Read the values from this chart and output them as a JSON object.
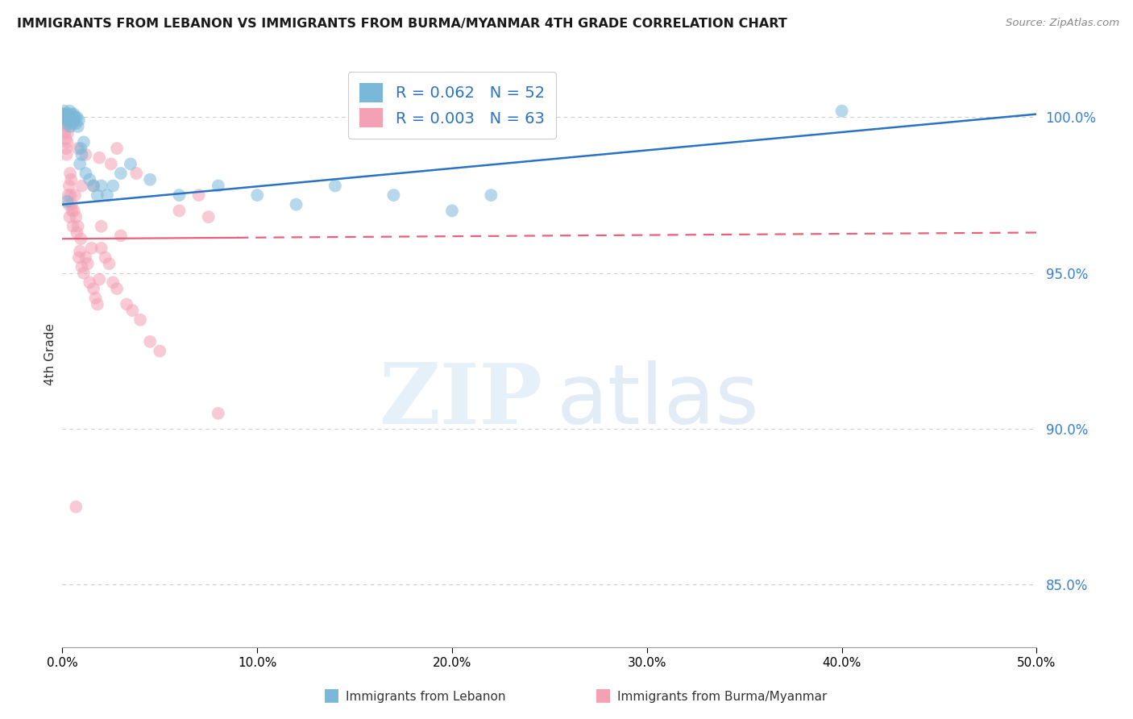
{
  "title": "IMMIGRANTS FROM LEBANON VS IMMIGRANTS FROM BURMA/MYANMAR 4TH GRADE CORRELATION CHART",
  "source": "Source: ZipAtlas.com",
  "ylabel": "4th Grade",
  "legend_label_blue": "Immigrants from Lebanon",
  "legend_label_pink": "Immigrants from Burma/Myanmar",
  "R_blue": 0.062,
  "N_blue": 52,
  "R_pink": 0.003,
  "N_pink": 63,
  "xlim": [
    0.0,
    50.0
  ],
  "ylim": [
    83.0,
    101.8
  ],
  "yticks": [
    85.0,
    90.0,
    95.0,
    100.0
  ],
  "xticks": [
    0.0,
    10.0,
    20.0,
    30.0,
    40.0,
    50.0
  ],
  "blue_color": "#7ab8d9",
  "pink_color": "#f4a0b5",
  "blue_line_color": "#2b72c2",
  "pink_line_color": "#e8607a",
  "blue_trend_y0": 97.2,
  "blue_trend_y1": 100.1,
  "pink_trend_y0": 96.1,
  "pink_trend_y1": 96.3,
  "pink_solid_end_x": 9.0,
  "blue_scatter_x": [
    0.05,
    0.08,
    0.1,
    0.12,
    0.15,
    0.18,
    0.2,
    0.22,
    0.25,
    0.28,
    0.3,
    0.33,
    0.35,
    0.38,
    0.4,
    0.42,
    0.45,
    0.48,
    0.5,
    0.52,
    0.55,
    0.58,
    0.6,
    0.65,
    0.7,
    0.75,
    0.8,
    0.85,
    0.9,
    0.95,
    1.0,
    1.1,
    1.2,
    1.4,
    1.6,
    1.8,
    2.0,
    2.3,
    2.6,
    3.0,
    3.5,
    4.5,
    6.0,
    8.0,
    10.0,
    12.0,
    14.0,
    17.0,
    20.0,
    22.0,
    40.0,
    0.25
  ],
  "blue_scatter_y": [
    100.1,
    100.0,
    100.2,
    100.0,
    100.1,
    99.9,
    100.0,
    100.1,
    99.8,
    100.0,
    100.1,
    99.9,
    100.0,
    100.2,
    99.7,
    100.0,
    99.9,
    100.1,
    100.0,
    99.8,
    100.0,
    100.1,
    99.9,
    100.0,
    99.8,
    100.0,
    99.7,
    99.9,
    98.5,
    99.0,
    98.8,
    99.2,
    98.2,
    98.0,
    97.8,
    97.5,
    97.8,
    97.5,
    97.8,
    98.2,
    98.5,
    98.0,
    97.5,
    97.8,
    97.5,
    97.2,
    97.8,
    97.5,
    97.0,
    97.5,
    100.2,
    97.3
  ],
  "pink_scatter_x": [
    0.05,
    0.08,
    0.1,
    0.12,
    0.15,
    0.18,
    0.2,
    0.22,
    0.25,
    0.28,
    0.3,
    0.33,
    0.35,
    0.38,
    0.4,
    0.42,
    0.45,
    0.48,
    0.5,
    0.55,
    0.6,
    0.65,
    0.7,
    0.75,
    0.8,
    0.85,
    0.9,
    0.95,
    1.0,
    1.1,
    1.2,
    1.3,
    1.4,
    1.5,
    1.6,
    1.7,
    1.8,
    1.9,
    2.0,
    2.2,
    2.4,
    2.6,
    2.8,
    3.0,
    3.3,
    3.6,
    4.0,
    4.5,
    5.0,
    6.0,
    7.0,
    7.5,
    8.0,
    1.2,
    2.5,
    0.8,
    1.9,
    1.0,
    2.8,
    3.8,
    1.6,
    2.0,
    0.7
  ],
  "pink_scatter_y": [
    100.1,
    100.0,
    99.8,
    99.5,
    99.7,
    99.3,
    99.0,
    98.8,
    99.2,
    99.5,
    97.5,
    97.2,
    97.8,
    96.8,
    98.2,
    97.5,
    98.0,
    97.2,
    97.0,
    96.5,
    97.0,
    97.5,
    96.8,
    96.3,
    96.5,
    95.5,
    95.7,
    96.1,
    95.2,
    95.0,
    95.5,
    95.3,
    94.7,
    95.8,
    94.5,
    94.2,
    94.0,
    94.8,
    96.5,
    95.5,
    95.3,
    94.7,
    94.5,
    96.2,
    94.0,
    93.8,
    93.5,
    92.8,
    92.5,
    97.0,
    97.5,
    96.8,
    90.5,
    98.8,
    98.5,
    99.0,
    98.7,
    97.8,
    99.0,
    98.2,
    97.8,
    95.8,
    87.5
  ]
}
